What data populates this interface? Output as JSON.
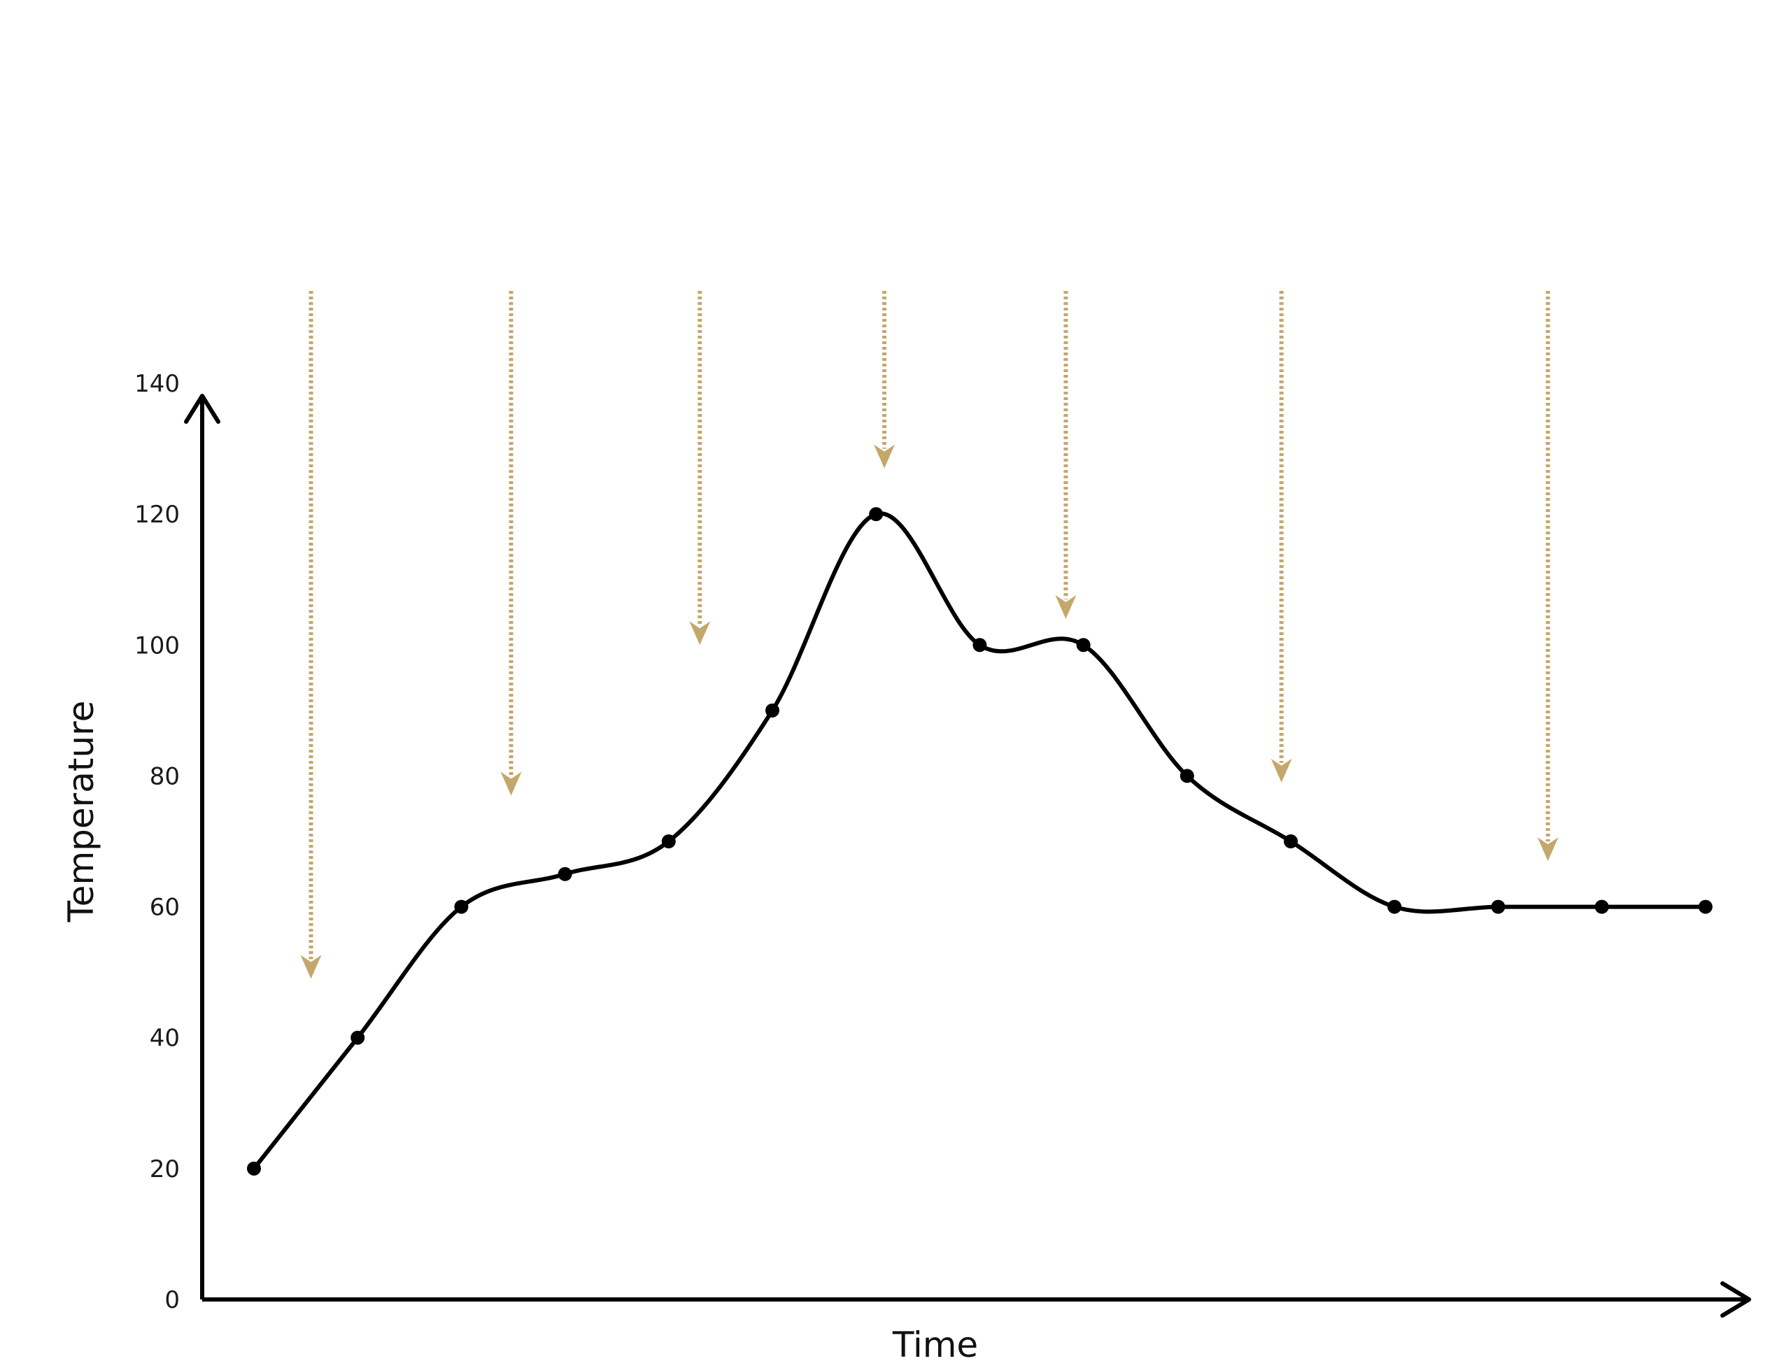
{
  "chart_data": {
    "type": "line",
    "title": "",
    "xlabel": "Time",
    "ylabel": "Temperature",
    "ylim": [
      0,
      140
    ],
    "yticks": [
      0,
      20,
      40,
      60,
      80,
      100,
      120,
      140
    ],
    "grid": false,
    "legend": "none",
    "series": [
      {
        "values": [
          20,
          40,
          60,
          65,
          70,
          90,
          120,
          100,
          100,
          80,
          70,
          60,
          60,
          60,
          60
        ]
      }
    ],
    "arrows": {
      "description": "dotted downward arrows above curve",
      "x_index": [
        0.55,
        2.48,
        4.3,
        6.08,
        7.83,
        9.91,
        12.48
      ],
      "tip_value": [
        49,
        77,
        100,
        127,
        104,
        79,
        67
      ]
    },
    "colors": {
      "line": "#000000",
      "arrow": "#c4a76b",
      "axis": "#000000"
    }
  }
}
